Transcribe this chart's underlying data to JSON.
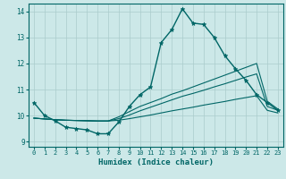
{
  "xlabel": "Humidex (Indice chaleur)",
  "bg_color": "#cce8e8",
  "line_color": "#006666",
  "grid_color": "#aacccc",
  "xlim": [
    -0.5,
    23.5
  ],
  "ylim": [
    8.8,
    14.3
  ],
  "xticks": [
    0,
    1,
    2,
    3,
    4,
    5,
    6,
    7,
    8,
    9,
    10,
    11,
    12,
    13,
    14,
    15,
    16,
    17,
    18,
    19,
    20,
    21,
    22,
    23
  ],
  "yticks": [
    9,
    10,
    11,
    12,
    13,
    14
  ],
  "series": [
    {
      "x": [
        0,
        1,
        2,
        3,
        4,
        5,
        6,
        7,
        8,
        9,
        10,
        11,
        12,
        13,
        14,
        15,
        16,
        17,
        18,
        19,
        20,
        21,
        22,
        23
      ],
      "y": [
        10.5,
        10.0,
        9.8,
        9.55,
        9.5,
        9.45,
        9.3,
        9.3,
        9.75,
        10.35,
        10.8,
        11.1,
        12.8,
        13.3,
        14.1,
        13.55,
        13.5,
        13.0,
        12.3,
        11.8,
        11.35,
        10.8,
        10.5,
        10.2
      ],
      "marker": true
    },
    {
      "x": [
        0,
        1,
        2,
        3,
        4,
        5,
        6,
        7,
        8,
        9,
        10,
        11,
        12,
        13,
        14,
        15,
        16,
        17,
        18,
        19,
        20,
        21,
        22,
        23
      ],
      "y": [
        9.9,
        9.87,
        9.84,
        9.82,
        9.81,
        9.8,
        9.79,
        9.79,
        9.95,
        10.15,
        10.35,
        10.5,
        10.65,
        10.82,
        10.95,
        11.1,
        11.25,
        11.4,
        11.55,
        11.7,
        11.85,
        12.0,
        10.55,
        10.25
      ],
      "marker": false
    },
    {
      "x": [
        0,
        1,
        2,
        3,
        4,
        5,
        6,
        7,
        8,
        9,
        10,
        11,
        12,
        13,
        14,
        15,
        16,
        17,
        18,
        19,
        20,
        21,
        22,
        23
      ],
      "y": [
        9.9,
        9.87,
        9.84,
        9.82,
        9.81,
        9.8,
        9.79,
        9.79,
        9.88,
        10.02,
        10.18,
        10.32,
        10.46,
        10.6,
        10.74,
        10.85,
        10.97,
        11.1,
        11.22,
        11.35,
        11.48,
        11.6,
        10.35,
        10.2
      ],
      "marker": false
    },
    {
      "x": [
        0,
        1,
        2,
        3,
        4,
        5,
        6,
        7,
        8,
        9,
        10,
        11,
        12,
        13,
        14,
        15,
        16,
        17,
        18,
        19,
        20,
        21,
        22,
        23
      ],
      "y": [
        9.9,
        9.87,
        9.84,
        9.82,
        9.81,
        9.8,
        9.79,
        9.79,
        9.82,
        9.88,
        9.95,
        10.02,
        10.1,
        10.18,
        10.25,
        10.32,
        10.4,
        10.47,
        10.54,
        10.62,
        10.69,
        10.76,
        10.2,
        10.1
      ],
      "marker": false
    }
  ]
}
